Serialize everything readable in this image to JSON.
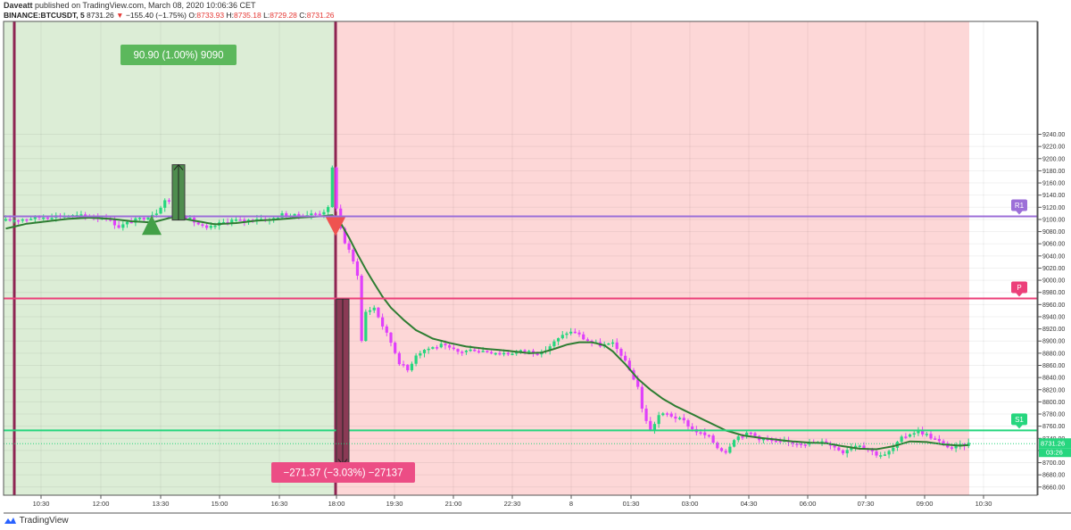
{
  "header": {
    "author": "Daveatt",
    "published": "published on TradingView.com, March 08, 2020 10:06:36 CET",
    "symbol": "BINANCE:BTCUSDT, 5",
    "last": "8731.26",
    "change_arrow": "▼",
    "change": "−155.40 (−1.75%)",
    "o_label": "O:",
    "o_value": "8733.93",
    "h_label": "H:",
    "h_value": "8735.18",
    "l_label": "L:",
    "l_value": "8729.28",
    "c_label": "C:",
    "c_value": "8731.26"
  },
  "footer": {
    "brand": "TradingView",
    "logo_icon": "tradingview-logo-icon"
  },
  "colors": {
    "up": "#26d67e",
    "down": "#e040fb",
    "ma": "#2e7d32",
    "long_zone": "#dcedd6",
    "short_zone": "#fdd7d7",
    "r1": "#9c6fd8",
    "p": "#ec407a",
    "s1": "#26d67e",
    "session_line": "#8e2452",
    "long_label": "#5cb85c",
    "short_label": "#ec4d85"
  },
  "chart_data": {
    "type": "candlestick",
    "symbol": "BINANCE:BTCUSDT",
    "timeframe": "5",
    "x_tick_labels": [
      "10:30",
      "12:00",
      "13:30",
      "15:00",
      "16:30",
      "18:00",
      "19:30",
      "21:00",
      "22:30",
      "8",
      "01:30",
      "03:00",
      "04:30",
      "06:00",
      "07:30",
      "09:00",
      "10:30"
    ],
    "y_ticks": [
      8660,
      8680,
      8700,
      8720,
      8740,
      8760,
      8780,
      8800,
      8820,
      8840,
      8860,
      8880,
      8900,
      8920,
      8940,
      8960,
      8980,
      9000,
      9020,
      9040,
      9060,
      9080,
      9100,
      9120,
      9140,
      9160,
      9180,
      9200,
      9220,
      9240
    ],
    "y_tick_format": "fixed2",
    "ylim": [
      8645,
      9250
    ],
    "price_path": [
      [
        0,
        9098
      ],
      [
        6,
        9102
      ],
      [
        12,
        9106
      ],
      [
        18,
        9106
      ],
      [
        24,
        9103
      ],
      [
        27,
        9088
      ],
      [
        30,
        9097
      ],
      [
        33,
        9103
      ],
      [
        36,
        9112
      ],
      [
        38,
        9132
      ],
      [
        40,
        9126
      ],
      [
        42,
        9108
      ],
      [
        45,
        9096
      ],
      [
        48,
        9084
      ],
      [
        51,
        9093
      ],
      [
        54,
        9099
      ],
      [
        57,
        9097
      ],
      [
        60,
        9102
      ],
      [
        63,
        9099
      ],
      [
        66,
        9108
      ],
      [
        69,
        9106
      ],
      [
        72,
        9108
      ],
      [
        75,
        9110
      ],
      [
        77,
        9118
      ],
      [
        78,
        9184
      ],
      [
        79,
        9120
      ],
      [
        80,
        9085
      ],
      [
        81,
        9062
      ],
      [
        82,
        9048
      ],
      [
        83,
        9030
      ],
      [
        84,
        9010
      ],
      [
        84.5,
        8950
      ],
      [
        85,
        8900
      ],
      [
        86,
        8948
      ],
      [
        88,
        8955
      ],
      [
        90,
        8925
      ],
      [
        92,
        8898
      ],
      [
        94,
        8865
      ],
      [
        96,
        8852
      ],
      [
        98,
        8878
      ],
      [
        100,
        8886
      ],
      [
        104,
        8893
      ],
      [
        108,
        8882
      ],
      [
        112,
        8886
      ],
      [
        116,
        8882
      ],
      [
        120,
        8880
      ],
      [
        124,
        8884
      ],
      [
        128,
        8880
      ],
      [
        131,
        8898
      ],
      [
        134,
        8914
      ],
      [
        136,
        8915
      ],
      [
        138,
        8904
      ],
      [
        140,
        8898
      ],
      [
        142,
        8893
      ],
      [
        145,
        8895
      ],
      [
        147,
        8878
      ],
      [
        149,
        8852
      ],
      [
        151,
        8825
      ],
      [
        152,
        8788
      ],
      [
        153,
        8770
      ],
      [
        154,
        8752
      ],
      [
        156,
        8778
      ],
      [
        158,
        8780
      ],
      [
        160,
        8774
      ],
      [
        162,
        8768
      ],
      [
        164,
        8755
      ],
      [
        166,
        8748
      ],
      [
        168,
        8742
      ],
      [
        170,
        8725
      ],
      [
        172,
        8718
      ],
      [
        174,
        8740
      ],
      [
        176,
        8746
      ],
      [
        178,
        8748
      ],
      [
        180,
        8740
      ],
      [
        184,
        8734
      ],
      [
        188,
        8733
      ],
      [
        192,
        8732
      ],
      [
        196,
        8734
      ],
      [
        198,
        8725
      ],
      [
        200,
        8718
      ],
      [
        202,
        8727
      ],
      [
        204,
        8730
      ],
      [
        206,
        8722
      ],
      [
        208,
        8714
      ],
      [
        210,
        8712
      ],
      [
        212,
        8724
      ],
      [
        214,
        8740
      ],
      [
        216,
        8748
      ],
      [
        218,
        8752
      ],
      [
        220,
        8746
      ],
      [
        222,
        8738
      ],
      [
        224,
        8730
      ],
      [
        226,
        8724
      ],
      [
        228,
        8728
      ],
      [
        230,
        8731.26
      ]
    ],
    "ma_path": [
      [
        0,
        9085
      ],
      [
        5,
        9093
      ],
      [
        10,
        9097
      ],
      [
        15,
        9101
      ],
      [
        20,
        9103
      ],
      [
        25,
        9101
      ],
      [
        30,
        9097
      ],
      [
        35,
        9095
      ],
      [
        40,
        9104
      ],
      [
        45,
        9098
      ],
      [
        50,
        9092
      ],
      [
        55,
        9094
      ],
      [
        60,
        9098
      ],
      [
        65,
        9100
      ],
      [
        70,
        9103
      ],
      [
        75,
        9105
      ],
      [
        78,
        9107
      ],
      [
        80,
        9094
      ],
      [
        82,
        9070
      ],
      [
        84,
        9043
      ],
      [
        86,
        9018
      ],
      [
        88,
        8995
      ],
      [
        90,
        8973
      ],
      [
        92,
        8955
      ],
      [
        95,
        8935
      ],
      [
        98,
        8918
      ],
      [
        102,
        8904
      ],
      [
        106,
        8897
      ],
      [
        110,
        8891
      ],
      [
        115,
        8887
      ],
      [
        120,
        8884
      ],
      [
        125,
        8880
      ],
      [
        128,
        8881
      ],
      [
        131,
        8887
      ],
      [
        134,
        8894
      ],
      [
        137,
        8898
      ],
      [
        140,
        8898
      ],
      [
        143,
        8893
      ],
      [
        145,
        8883
      ],
      [
        148,
        8862
      ],
      [
        151,
        8838
      ],
      [
        154,
        8820
      ],
      [
        157,
        8805
      ],
      [
        160,
        8793
      ],
      [
        163,
        8783
      ],
      [
        166,
        8773
      ],
      [
        169,
        8763
      ],
      [
        172,
        8753
      ],
      [
        176,
        8745
      ],
      [
        180,
        8741
      ],
      [
        184,
        8738
      ],
      [
        188,
        8735
      ],
      [
        192,
        8733
      ],
      [
        196,
        8732
      ],
      [
        200,
        8727
      ],
      [
        204,
        8723
      ],
      [
        208,
        8722
      ],
      [
        212,
        8727
      ],
      [
        216,
        8735
      ],
      [
        220,
        8734
      ],
      [
        224,
        8730
      ],
      [
        228,
        8728
      ],
      [
        230,
        8729
      ]
    ],
    "moving_average": {
      "color": "#2e7d32"
    },
    "sessions": [
      {
        "type": "long",
        "zone": "long_zone"
      },
      {
        "type": "short",
        "zone": "short_zone"
      }
    ],
    "levels": [
      {
        "label": "R1",
        "value": 9105,
        "color": "r1"
      },
      {
        "label": "P",
        "value": 8970,
        "color": "p"
      },
      {
        "label": "S1",
        "value": 8753,
        "color": "s1"
      }
    ],
    "signals": [
      {
        "type": "buy",
        "value": 9082
      },
      {
        "type": "sell",
        "value": 9083
      }
    ],
    "measurements": [
      {
        "label": "90.90 (1.00%) 9090",
        "from_value": 9099,
        "to_value": 9190,
        "direction": "up"
      },
      {
        "label": "−271.37 (−3.03%) −27137",
        "from_value": 8969,
        "to_value": 8697,
        "direction": "down"
      }
    ],
    "last_price_label": "8731.26",
    "countdown_label": "03:26"
  }
}
